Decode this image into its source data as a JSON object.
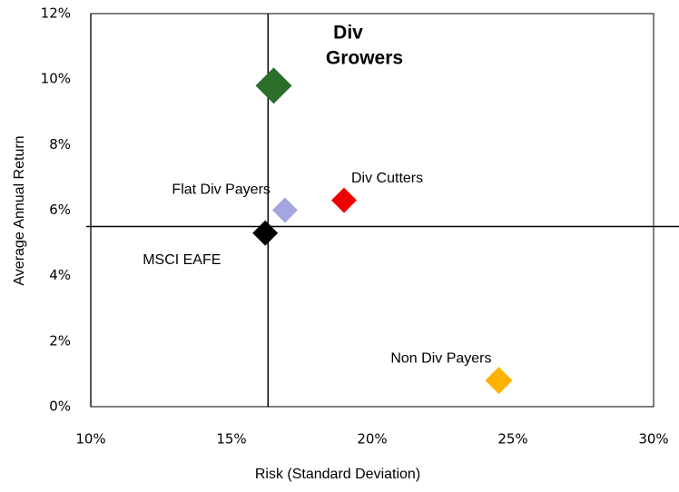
{
  "chart_data": {
    "type": "scatter",
    "xlabel": "Risk (Standard Deviation)",
    "ylabel": "Average Annual Return",
    "xlim": [
      10,
      30
    ],
    "ylim": [
      0,
      12
    ],
    "xticks": [
      {
        "value": 10,
        "label": "10%"
      },
      {
        "value": 15,
        "label": "15%"
      },
      {
        "value": 20,
        "label": "20%"
      },
      {
        "value": 25,
        "label": "25%"
      },
      {
        "value": 30,
        "label": "30%"
      }
    ],
    "yticks": [
      {
        "value": 0,
        "label": "0%"
      },
      {
        "value": 2,
        "label": "2%"
      },
      {
        "value": 4,
        "label": "4%"
      },
      {
        "value": 6,
        "label": "6%"
      },
      {
        "value": 8,
        "label": "8%"
      },
      {
        "value": 10,
        "label": "10%"
      },
      {
        "value": 12,
        "label": "12%"
      }
    ],
    "reference_x": 16.3,
    "reference_y": 5.5,
    "series": [
      {
        "name": "Div Growers",
        "color": "#2a6e2a",
        "x": [
          16.5
        ],
        "values": [
          9.8
        ]
      },
      {
        "name": "Flat Div Payers",
        "color": "#a5a5e0",
        "x": [
          16.9
        ],
        "values": [
          6.0
        ]
      },
      {
        "name": "Div Cutters",
        "color": "#ee0000",
        "x": [
          19.0
        ],
        "values": [
          6.3
        ]
      },
      {
        "name": "MSCI EAFE",
        "color": "#000000",
        "x": [
          16.2
        ],
        "values": [
          5.3
        ]
      },
      {
        "name": "Non Div Payers",
        "color": "#ffb300",
        "x": [
          24.5
        ],
        "values": [
          0.8
        ]
      }
    ]
  }
}
